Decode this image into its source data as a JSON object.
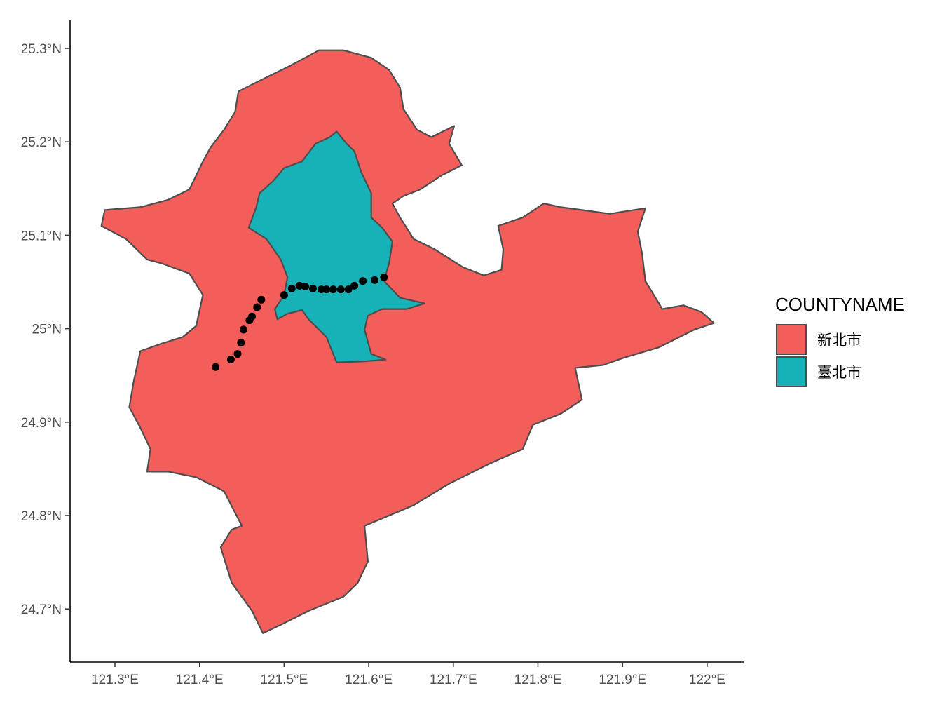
{
  "chart_data": {
    "type": "map",
    "title": "",
    "xlabel": "",
    "ylabel": "",
    "xlim": [
      121.247,
      122.043
    ],
    "ylim": [
      24.64,
      25.33
    ],
    "grid": false,
    "legend_position": "right",
    "x_ticks": [
      121.3,
      121.4,
      121.5,
      121.6,
      121.7,
      121.8,
      121.9,
      122.0
    ],
    "x_tick_labels": [
      "121.3°E",
      "121.4°E",
      "121.5°E",
      "121.6°E",
      "121.7°E",
      "121.8°E",
      "121.9°E",
      "122°E"
    ],
    "y_ticks": [
      24.7,
      24.8,
      24.9,
      25.0,
      25.1,
      25.2,
      25.3
    ],
    "y_tick_labels": [
      "24.7°N",
      "24.8°N",
      "24.9°N",
      "25°N",
      "25.1°N",
      "25.2°N",
      "25.3°N"
    ],
    "legend": {
      "title": "COUNTYNAME",
      "entries": [
        {
          "label": "新北市",
          "color": "#F35E5A"
        },
        {
          "label": "臺北市",
          "color": "#17B2B8"
        }
      ]
    },
    "regions": [
      {
        "name": "新北市",
        "color": "#F35E5A",
        "outline": [
          [
            121.541,
            25.298
          ],
          [
            121.57,
            25.298
          ],
          [
            121.603,
            25.29
          ],
          [
            121.624,
            25.277
          ],
          [
            121.637,
            25.258
          ],
          [
            121.641,
            25.235
          ],
          [
            121.657,
            25.213
          ],
          [
            121.674,
            25.205
          ],
          [
            121.701,
            25.217
          ],
          [
            121.695,
            25.198
          ],
          [
            121.71,
            25.175
          ],
          [
            121.686,
            25.164
          ],
          [
            121.661,
            25.149
          ],
          [
            121.641,
            25.142
          ],
          [
            121.628,
            25.134
          ],
          [
            121.637,
            25.119
          ],
          [
            121.653,
            25.096
          ],
          [
            121.678,
            25.085
          ],
          [
            121.711,
            25.066
          ],
          [
            121.736,
            25.057
          ],
          [
            121.757,
            25.063
          ],
          [
            121.759,
            25.085
          ],
          [
            121.753,
            25.11
          ],
          [
            121.782,
            25.119
          ],
          [
            121.807,
            25.134
          ],
          [
            121.827,
            25.13
          ],
          [
            121.852,
            25.127
          ],
          [
            121.885,
            25.123
          ],
          [
            121.927,
            25.129
          ],
          [
            121.918,
            25.104
          ],
          [
            121.923,
            25.081
          ],
          [
            121.927,
            25.051
          ],
          [
            121.947,
            25.021
          ],
          [
            121.972,
            25.025
          ],
          [
            121.993,
            25.018
          ],
          [
            122.008,
            25.006
          ],
          [
            121.985,
            24.999
          ],
          [
            121.943,
            24.98
          ],
          [
            121.902,
            24.969
          ],
          [
            121.877,
            24.961
          ],
          [
            121.844,
            24.958
          ],
          [
            121.852,
            24.924
          ],
          [
            121.827,
            24.909
          ],
          [
            121.794,
            24.897
          ],
          [
            121.782,
            24.871
          ],
          [
            121.744,
            24.856
          ],
          [
            121.695,
            24.834
          ],
          [
            121.653,
            24.811
          ],
          [
            121.595,
            24.789
          ],
          [
            121.599,
            24.751
          ],
          [
            121.587,
            24.728
          ],
          [
            121.57,
            24.713
          ],
          [
            121.529,
            24.698
          ],
          [
            121.496,
            24.683
          ],
          [
            121.475,
            24.674
          ],
          [
            121.462,
            24.698
          ],
          [
            121.438,
            24.728
          ],
          [
            121.425,
            24.766
          ],
          [
            121.438,
            24.785
          ],
          [
            121.45,
            24.789
          ],
          [
            121.429,
            24.826
          ],
          [
            121.396,
            24.841
          ],
          [
            121.363,
            24.847
          ],
          [
            121.338,
            24.847
          ],
          [
            121.342,
            24.871
          ],
          [
            121.33,
            24.894
          ],
          [
            121.317,
            24.916
          ],
          [
            121.322,
            24.943
          ],
          [
            121.33,
            24.976
          ],
          [
            121.355,
            24.984
          ],
          [
            121.38,
            24.991
          ],
          [
            121.396,
            25.003
          ],
          [
            121.404,
            25.036
          ],
          [
            121.388,
            25.059
          ],
          [
            121.355,
            25.07
          ],
          [
            121.338,
            25.074
          ],
          [
            121.313,
            25.096
          ],
          [
            121.284,
            25.11
          ],
          [
            121.288,
            25.127
          ],
          [
            121.33,
            25.13
          ],
          [
            121.363,
            25.138
          ],
          [
            121.388,
            25.149
          ],
          [
            121.404,
            25.179
          ],
          [
            121.413,
            25.194
          ],
          [
            121.429,
            25.213
          ],
          [
            121.442,
            25.232
          ],
          [
            121.446,
            25.254
          ],
          [
            121.479,
            25.269
          ],
          [
            121.504,
            25.28
          ],
          [
            121.529,
            25.292
          ]
        ]
      },
      {
        "name": "臺北市",
        "color": "#17B2B8",
        "outline": [
          [
            121.562,
            25.211
          ],
          [
            121.574,
            25.198
          ],
          [
            121.583,
            25.19
          ],
          [
            121.591,
            25.168
          ],
          [
            121.603,
            25.145
          ],
          [
            121.603,
            25.119
          ],
          [
            121.616,
            25.108
          ],
          [
            121.628,
            25.093
          ],
          [
            121.624,
            25.07
          ],
          [
            121.618,
            25.051
          ],
          [
            121.637,
            25.033
          ],
          [
            121.666,
            25.027
          ],
          [
            121.645,
            25.021
          ],
          [
            121.616,
            25.021
          ],
          [
            121.599,
            25.014
          ],
          [
            121.595,
            24.999
          ],
          [
            121.603,
            24.973
          ],
          [
            121.62,
            24.967
          ],
          [
            121.595,
            24.965
          ],
          [
            121.562,
            24.964
          ],
          [
            121.55,
            24.991
          ],
          [
            121.529,
            25.01
          ],
          [
            121.521,
            25.02
          ],
          [
            121.504,
            25.016
          ],
          [
            121.492,
            25.01
          ],
          [
            121.489,
            25.021
          ],
          [
            121.5,
            25.036
          ],
          [
            121.504,
            25.055
          ],
          [
            121.496,
            25.074
          ],
          [
            121.479,
            25.096
          ],
          [
            121.458,
            25.108
          ],
          [
            121.467,
            25.13
          ],
          [
            121.471,
            25.145
          ],
          [
            121.487,
            25.158
          ],
          [
            121.5,
            25.172
          ],
          [
            121.521,
            25.179
          ],
          [
            121.537,
            25.198
          ],
          [
            121.554,
            25.205
          ]
        ]
      }
    ],
    "points": [
      [
        121.419,
        24.959
      ],
      [
        121.437,
        24.967
      ],
      [
        121.445,
        24.973
      ],
      [
        121.449,
        24.985
      ],
      [
        121.452,
        24.999
      ],
      [
        121.459,
        25.009
      ],
      [
        121.462,
        25.013
      ],
      [
        121.468,
        25.023
      ],
      [
        121.473,
        25.031
      ],
      [
        121.5,
        25.036
      ],
      [
        121.509,
        25.043
      ],
      [
        121.518,
        25.046
      ],
      [
        121.525,
        25.045
      ],
      [
        121.534,
        25.043
      ],
      [
        121.544,
        25.042
      ],
      [
        121.55,
        25.042
      ],
      [
        121.558,
        25.042
      ],
      [
        121.567,
        25.042
      ],
      [
        121.576,
        25.042
      ],
      [
        121.583,
        25.046
      ],
      [
        121.593,
        25.051
      ],
      [
        121.607,
        25.052
      ],
      [
        121.618,
        25.055
      ]
    ],
    "point_color": "#000000",
    "outline_color": "#4d4d4d"
  }
}
